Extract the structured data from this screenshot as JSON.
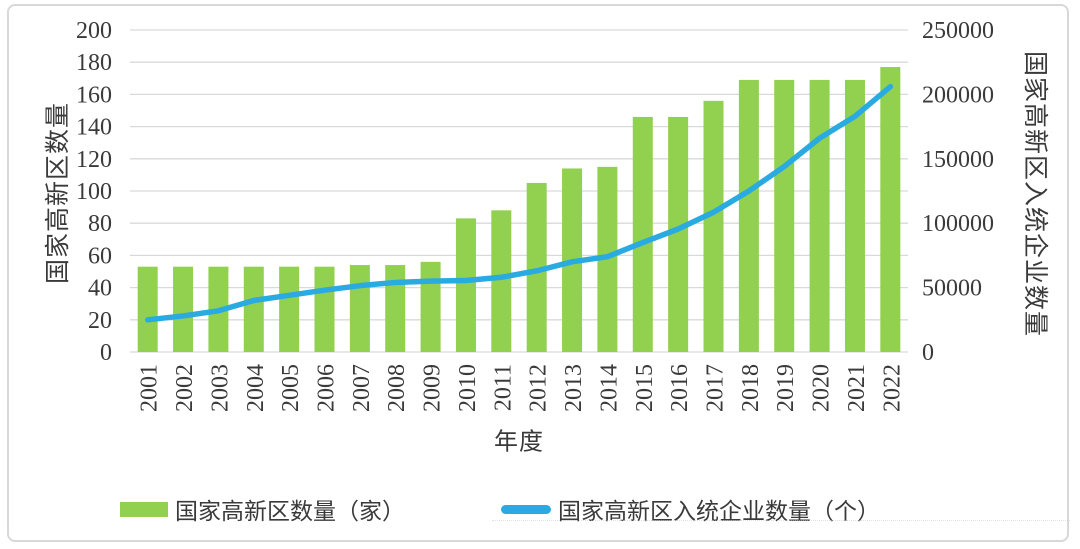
{
  "chart_data": {
    "type": "combo_bar_line",
    "categories": [
      "2001",
      "2002",
      "2003",
      "2004",
      "2005",
      "2006",
      "2007",
      "2008",
      "2009",
      "2010",
      "2011",
      "2012",
      "2013",
      "2014",
      "2015",
      "2016",
      "2017",
      "2018",
      "2019",
      "2020",
      "2021",
      "2022"
    ],
    "series": [
      {
        "name": "国家高新区数量（家）",
        "type": "bar",
        "axis": "left",
        "values": [
          53,
          53,
          53,
          53,
          53,
          53,
          54,
          54,
          56,
          83,
          88,
          105,
          114,
          115,
          146,
          146,
          156,
          169,
          169,
          169,
          169,
          177
        ]
      },
      {
        "name": "国家高新区入统企业数量（个）",
        "type": "line",
        "axis": "right",
        "values": [
          25000,
          28000,
          32000,
          40000,
          44000,
          48000,
          51500,
          54000,
          55000,
          55500,
          58000,
          63000,
          70000,
          74000,
          85000,
          95500,
          108500,
          125000,
          144000,
          166000,
          183000,
          206000
        ]
      }
    ],
    "left_axis": {
      "label": "国家高新区数量",
      "min": 0,
      "max": 200,
      "step": 20,
      "ticks": [
        "0",
        "20",
        "40",
        "60",
        "80",
        "100",
        "120",
        "140",
        "160",
        "180",
        "200"
      ]
    },
    "right_axis": {
      "label": "国家高新区入统企业数量",
      "min": 0,
      "max": 250000,
      "step": 50000,
      "ticks": [
        "0",
        "50000",
        "100000",
        "150000",
        "200000",
        "250000"
      ]
    },
    "xlabel": "年度",
    "grid": true,
    "legend_position": "bottom",
    "colors": {
      "bar": "#92d050",
      "line": "#29abe2",
      "grid": "#d9d9d9",
      "axis_line": "#d9d9d9",
      "text": "#3a3a3a"
    }
  },
  "axes": {
    "left_title": "国家高新区数量",
    "right_title": "国家高新区入统企业数量",
    "x_title": "年度"
  },
  "legend": {
    "bar_label": "国家高新区数量（家）",
    "line_label": "国家高新区入统企业数量（个）"
  }
}
